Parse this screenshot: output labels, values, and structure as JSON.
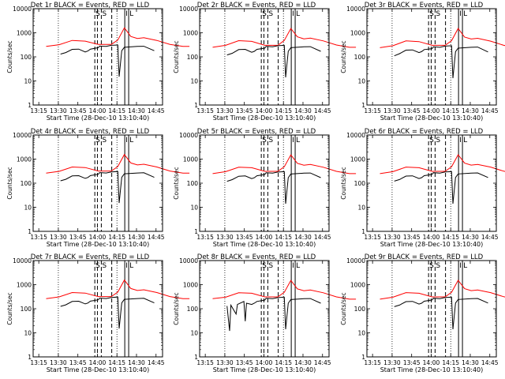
{
  "chart_data": {
    "type": "line",
    "layout": {
      "columns": 3,
      "rows": 3
    },
    "y_scale": "log",
    "ylim": [
      1,
      10000
    ],
    "xlim": [
      "13:10:40",
      "14:50"
    ],
    "x_tick_labels": [
      "13:15",
      "13:30",
      "13:45",
      "14:00",
      "14:15",
      "14:30",
      "14:45"
    ],
    "y_tick_labels": [
      "1",
      "10",
      "100",
      "1000",
      "10000"
    ],
    "xlabel": "Start Time (28-Dec-10 13:10:40)",
    "ylabel": "Counts/sec",
    "colors": {
      "events": "#000000",
      "lld": "#ff0000"
    },
    "markers": {
      "dotted": [
        "13:30",
        "14:15"
      ],
      "dashed": [
        {
          "time": "13:58",
          "label": "S"
        },
        {
          "time": "14:00",
          "label": ""
        },
        {
          "time": "14:03",
          "label": "S"
        },
        {
          "time": "14:11",
          "label": ""
        }
      ],
      "solid": [
        {
          "time": "14:21",
          "label": "I"
        },
        {
          "time": "14:24",
          "label": "L"
        }
      ]
    },
    "panels": [
      {
        "title": "Det 1r BLACK = Events, RED = LLD",
        "lld": [
          [
            10,
            270
          ],
          [
            20,
            320
          ],
          [
            30,
            480
          ],
          [
            40,
            450
          ],
          [
            50,
            330
          ],
          [
            60,
            330
          ],
          [
            65,
            500
          ],
          [
            70,
            1600
          ],
          [
            75,
            700
          ],
          [
            80,
            580
          ],
          [
            85,
            620
          ],
          [
            95,
            480
          ],
          [
            105,
            330
          ],
          [
            115,
            270
          ],
          [
            120,
            270
          ]
        ],
        "events": [
          [
            21,
            130
          ],
          [
            25,
            150
          ],
          [
            30,
            205
          ],
          [
            35,
            210
          ],
          [
            40,
            160
          ],
          [
            42,
            175
          ],
          [
            44,
            210
          ],
          [
            50,
            240
          ],
          [
            51,
            280
          ],
          [
            56,
            270
          ],
          [
            60,
            300
          ],
          [
            65,
            310
          ],
          [
            66,
            15
          ],
          [
            68,
            180
          ],
          [
            70,
            250
          ],
          [
            80,
            270
          ],
          [
            85,
            275
          ],
          [
            93,
            180
          ]
        ]
      },
      {
        "title": "Det 2r BLACK = Events, RED = LLD",
        "lld": [
          [
            10,
            250
          ],
          [
            20,
            300
          ],
          [
            30,
            470
          ],
          [
            40,
            440
          ],
          [
            50,
            300
          ],
          [
            60,
            300
          ],
          [
            65,
            480
          ],
          [
            70,
            1500
          ],
          [
            75,
            680
          ],
          [
            80,
            560
          ],
          [
            85,
            600
          ],
          [
            95,
            460
          ],
          [
            105,
            310
          ],
          [
            115,
            250
          ],
          [
            120,
            250
          ]
        ],
        "events": [
          [
            21,
            120
          ],
          [
            25,
            140
          ],
          [
            30,
            200
          ],
          [
            35,
            205
          ],
          [
            40,
            155
          ],
          [
            42,
            170
          ],
          [
            44,
            205
          ],
          [
            50,
            230
          ],
          [
            51,
            270
          ],
          [
            56,
            260
          ],
          [
            60,
            290
          ],
          [
            65,
            300
          ],
          [
            66,
            14
          ],
          [
            68,
            170
          ],
          [
            70,
            240
          ],
          [
            80,
            260
          ],
          [
            85,
            265
          ],
          [
            93,
            170
          ]
        ]
      },
      {
        "title": "Det 3r BLACK = Events, RED = LLD",
        "lld": [
          [
            10,
            240
          ],
          [
            20,
            290
          ],
          [
            30,
            460
          ],
          [
            40,
            430
          ],
          [
            50,
            300
          ],
          [
            60,
            300
          ],
          [
            65,
            470
          ],
          [
            70,
            1500
          ],
          [
            75,
            660
          ],
          [
            80,
            550
          ],
          [
            85,
            590
          ],
          [
            95,
            450
          ],
          [
            105,
            300
          ],
          [
            115,
            240
          ],
          [
            120,
            240
          ]
        ],
        "events": [
          [
            21,
            110
          ],
          [
            25,
            135
          ],
          [
            30,
            190
          ],
          [
            35,
            195
          ],
          [
            40,
            150
          ],
          [
            42,
            165
          ],
          [
            44,
            200
          ],
          [
            50,
            220
          ],
          [
            51,
            260
          ],
          [
            56,
            250
          ],
          [
            60,
            280
          ],
          [
            65,
            290
          ],
          [
            66,
            13
          ],
          [
            68,
            165
          ],
          [
            70,
            230
          ],
          [
            80,
            250
          ],
          [
            85,
            255
          ],
          [
            93,
            160
          ]
        ]
      },
      {
        "title": "Det 4r BLACK = Events, RED = LLD",
        "lld": [
          [
            10,
            260
          ],
          [
            20,
            310
          ],
          [
            30,
            470
          ],
          [
            40,
            445
          ],
          [
            50,
            320
          ],
          [
            60,
            320
          ],
          [
            65,
            490
          ],
          [
            70,
            1550
          ],
          [
            75,
            690
          ],
          [
            80,
            570
          ],
          [
            85,
            610
          ],
          [
            95,
            470
          ],
          [
            105,
            320
          ],
          [
            115,
            260
          ],
          [
            120,
            260
          ]
        ],
        "events": [
          [
            21,
            125
          ],
          [
            25,
            145
          ],
          [
            30,
            200
          ],
          [
            35,
            205
          ],
          [
            40,
            158
          ],
          [
            42,
            172
          ],
          [
            44,
            207
          ],
          [
            50,
            235
          ],
          [
            51,
            275
          ],
          [
            56,
            265
          ],
          [
            60,
            295
          ],
          [
            65,
            305
          ],
          [
            66,
            15
          ],
          [
            68,
            175
          ],
          [
            70,
            245
          ],
          [
            80,
            265
          ],
          [
            85,
            270
          ],
          [
            93,
            175
          ]
        ]
      },
      {
        "title": "Det 5r BLACK = Events, RED = LLD",
        "lld": [
          [
            10,
            250
          ],
          [
            20,
            300
          ],
          [
            30,
            460
          ],
          [
            40,
            440
          ],
          [
            50,
            310
          ],
          [
            60,
            310
          ],
          [
            65,
            480
          ],
          [
            70,
            1500
          ],
          [
            75,
            670
          ],
          [
            80,
            560
          ],
          [
            85,
            600
          ],
          [
            95,
            460
          ],
          [
            105,
            310
          ],
          [
            115,
            250
          ],
          [
            120,
            250
          ]
        ],
        "events": [
          [
            21,
            120
          ],
          [
            25,
            140
          ],
          [
            30,
            195
          ],
          [
            35,
            200
          ],
          [
            40,
            155
          ],
          [
            42,
            168
          ],
          [
            44,
            203
          ],
          [
            50,
            230
          ],
          [
            51,
            270
          ],
          [
            56,
            260
          ],
          [
            60,
            290
          ],
          [
            65,
            300
          ],
          [
            66,
            14
          ],
          [
            68,
            170
          ],
          [
            70,
            240
          ],
          [
            80,
            260
          ],
          [
            85,
            265
          ],
          [
            93,
            170
          ]
        ]
      },
      {
        "title": "Det 6r BLACK = Events, RED = LLD",
        "lld": [
          [
            10,
            250
          ],
          [
            20,
            300
          ],
          [
            30,
            465
          ],
          [
            40,
            440
          ],
          [
            50,
            310
          ],
          [
            60,
            310
          ],
          [
            65,
            485
          ],
          [
            70,
            1520
          ],
          [
            75,
            680
          ],
          [
            80,
            565
          ],
          [
            85,
            605
          ],
          [
            95,
            465
          ],
          [
            105,
            315
          ],
          [
            115,
            255
          ],
          [
            120,
            255
          ]
        ],
        "events": [
          [
            21,
            122
          ],
          [
            25,
            142
          ],
          [
            30,
            197
          ],
          [
            35,
            202
          ],
          [
            40,
            156
          ],
          [
            42,
            170
          ],
          [
            44,
            205
          ],
          [
            50,
            232
          ],
          [
            51,
            272
          ],
          [
            56,
            262
          ],
          [
            60,
            292
          ],
          [
            65,
            302
          ],
          [
            66,
            14
          ],
          [
            68,
            172
          ],
          [
            70,
            242
          ],
          [
            80,
            262
          ],
          [
            85,
            267
          ],
          [
            93,
            172
          ]
        ]
      },
      {
        "title": "Det 7r BLACK = Events, RED = LLD",
        "lld": [
          [
            10,
            260
          ],
          [
            20,
            310
          ],
          [
            30,
            470
          ],
          [
            40,
            445
          ],
          [
            50,
            320
          ],
          [
            60,
            320
          ],
          [
            65,
            490
          ],
          [
            70,
            1550
          ],
          [
            75,
            690
          ],
          [
            80,
            570
          ],
          [
            85,
            610
          ],
          [
            95,
            470
          ],
          [
            105,
            320
          ],
          [
            115,
            260
          ],
          [
            120,
            260
          ]
        ],
        "events": [
          [
            21,
            125
          ],
          [
            25,
            145
          ],
          [
            30,
            200
          ],
          [
            35,
            205
          ],
          [
            40,
            158
          ],
          [
            42,
            172
          ],
          [
            44,
            207
          ],
          [
            50,
            235
          ],
          [
            51,
            275
          ],
          [
            56,
            265
          ],
          [
            60,
            295
          ],
          [
            65,
            305
          ],
          [
            66,
            15
          ],
          [
            68,
            175
          ],
          [
            70,
            245
          ],
          [
            80,
            265
          ],
          [
            85,
            270
          ],
          [
            93,
            175
          ]
        ]
      },
      {
        "title": "Det 8r BLACK = Events, RED = LLD",
        "lld": [
          [
            10,
            260
          ],
          [
            20,
            300
          ],
          [
            30,
            460
          ],
          [
            40,
            440
          ],
          [
            50,
            310
          ],
          [
            60,
            310
          ],
          [
            65,
            480
          ],
          [
            70,
            1500
          ],
          [
            75,
            670
          ],
          [
            80,
            560
          ],
          [
            85,
            600
          ],
          [
            95,
            460
          ],
          [
            105,
            310
          ],
          [
            115,
            250
          ],
          [
            120,
            250
          ]
        ],
        "events": [
          [
            21,
            130
          ],
          [
            23,
            12
          ],
          [
            24,
            140
          ],
          [
            28,
            60
          ],
          [
            29,
            150
          ],
          [
            34,
            200
          ],
          [
            35,
            30
          ],
          [
            36,
            170
          ],
          [
            40,
            150
          ],
          [
            42,
            170
          ],
          [
            44,
            200
          ],
          [
            50,
            230
          ],
          [
            51,
            270
          ],
          [
            56,
            260
          ],
          [
            60,
            290
          ],
          [
            65,
            300
          ],
          [
            66,
            14
          ],
          [
            68,
            170
          ],
          [
            70,
            240
          ],
          [
            80,
            260
          ],
          [
            85,
            265
          ],
          [
            93,
            170
          ]
        ]
      },
      {
        "title": "Det 9r BLACK = Events, RED = LLD",
        "lld": [
          [
            10,
            250
          ],
          [
            20,
            300
          ],
          [
            30,
            465
          ],
          [
            40,
            440
          ],
          [
            50,
            310
          ],
          [
            60,
            310
          ],
          [
            65,
            485
          ],
          [
            70,
            1520
          ],
          [
            75,
            680
          ],
          [
            80,
            565
          ],
          [
            85,
            605
          ],
          [
            95,
            465
          ],
          [
            105,
            315
          ],
          [
            115,
            255
          ],
          [
            120,
            255
          ]
        ],
        "events": [
          [
            21,
            122
          ],
          [
            25,
            142
          ],
          [
            30,
            197
          ],
          [
            35,
            202
          ],
          [
            40,
            156
          ],
          [
            42,
            170
          ],
          [
            44,
            205
          ],
          [
            50,
            232
          ],
          [
            51,
            272
          ],
          [
            56,
            262
          ],
          [
            60,
            292
          ],
          [
            65,
            302
          ],
          [
            66,
            14
          ],
          [
            68,
            172
          ],
          [
            70,
            242
          ],
          [
            80,
            262
          ],
          [
            85,
            267
          ],
          [
            93,
            172
          ]
        ]
      }
    ]
  }
}
